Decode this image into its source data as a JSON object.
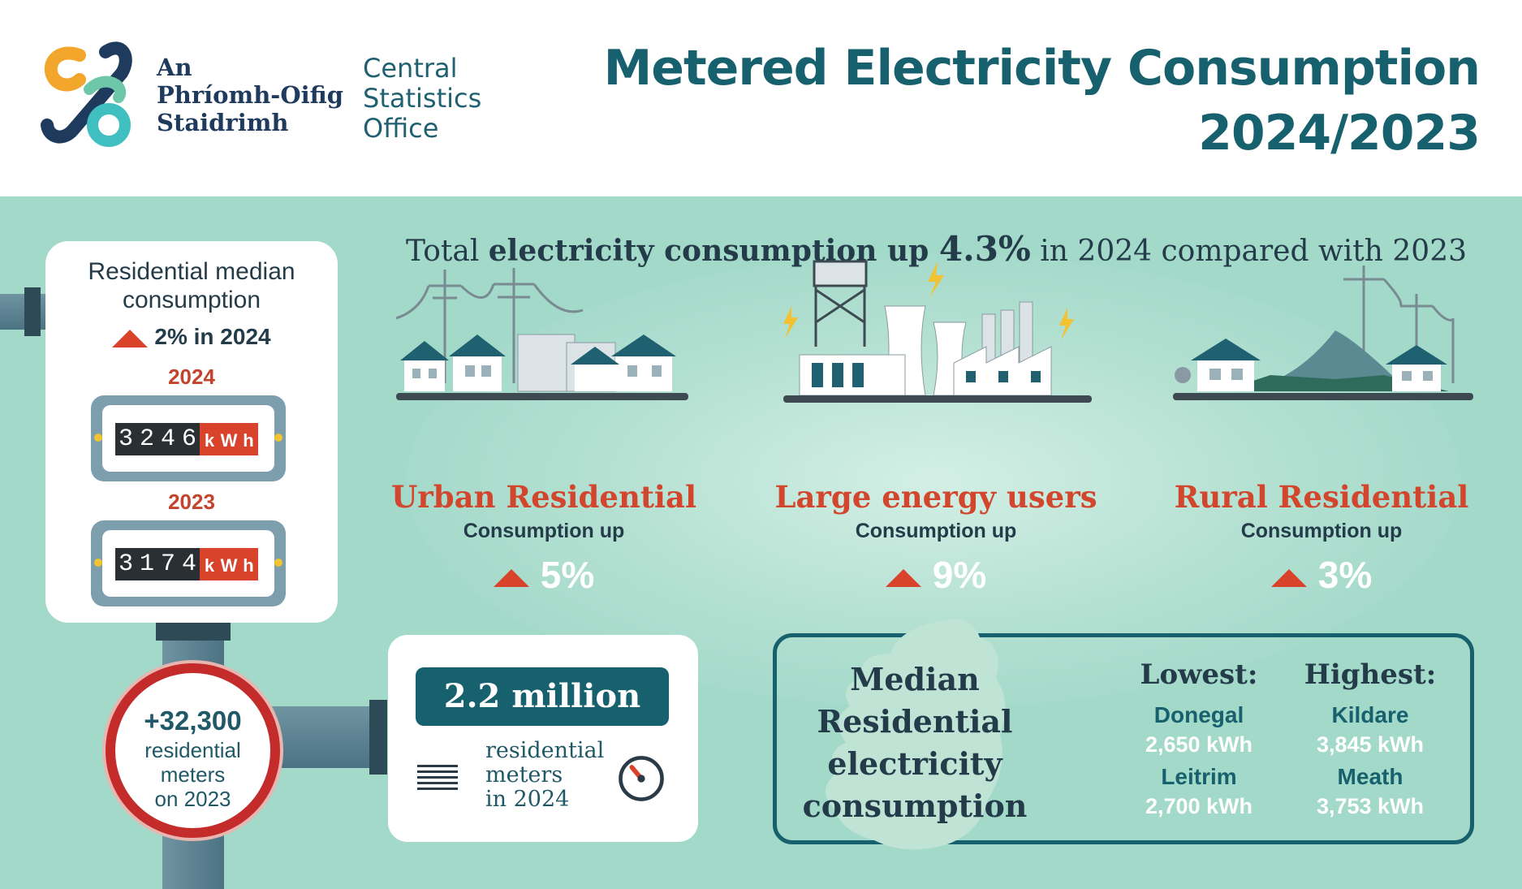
{
  "header": {
    "logo_irish_line1": "An",
    "logo_irish_line2": "Phríomh-Oifig",
    "logo_irish_line3": "Staidrimh",
    "logo_english_line1": "Central",
    "logo_english_line2": "Statistics",
    "logo_english_line3": "Office",
    "title_line1": "Metered Electricity Consumption",
    "title_line2": "2024/2023"
  },
  "headline": {
    "prefix": "Total ",
    "bold": "electricity consumption up ",
    "value": "4.3%",
    "suffix": " in 2024 compared with 2023"
  },
  "residential_median": {
    "title_line1": "Residential median",
    "title_line2": "consumption",
    "change": "2% in 2024",
    "year_2024": "2024",
    "reading_2024": [
      "3",
      "2",
      "4",
      "6"
    ],
    "year_2023": "2023",
    "reading_2023": [
      "3",
      "1",
      "7",
      "4"
    ],
    "unit_letters": [
      "k",
      "W",
      "h"
    ]
  },
  "new_meters": {
    "value": "+32,300",
    "line1": "residential",
    "line2": "meters",
    "line3": "on 2023"
  },
  "total_meters": {
    "value": "2.2 million",
    "line1": "residential",
    "line2": "meters",
    "line3": "in 2024"
  },
  "categories": [
    {
      "name": "Urban Residential",
      "sub": "Consumption up",
      "pct": "5%"
    },
    {
      "name": "Large energy users",
      "sub": "Consumption up",
      "pct": "9%"
    },
    {
      "name": "Rural Residential",
      "sub": "Consumption up",
      "pct": "3%"
    }
  ],
  "median_box": {
    "title_line1": "Median",
    "title_line2": "Residential",
    "title_line3": "electricity",
    "title_line4": "consumption",
    "lowest_label": "Lowest:",
    "lowest": [
      {
        "county": "Donegal",
        "value": "2,650 kWh"
      },
      {
        "county": "Leitrim",
        "value": "2,700 kWh"
      }
    ],
    "highest_label": "Highest:",
    "highest": [
      {
        "county": "Kildare",
        "value": "3,845 kWh"
      },
      {
        "county": "Meath",
        "value": "3,753 kWh"
      }
    ]
  },
  "colors": {
    "teal": "#17606d",
    "mint_background": "#a3d9c9",
    "accent_red": "#d2462d",
    "navy_text": "#243b4a"
  }
}
